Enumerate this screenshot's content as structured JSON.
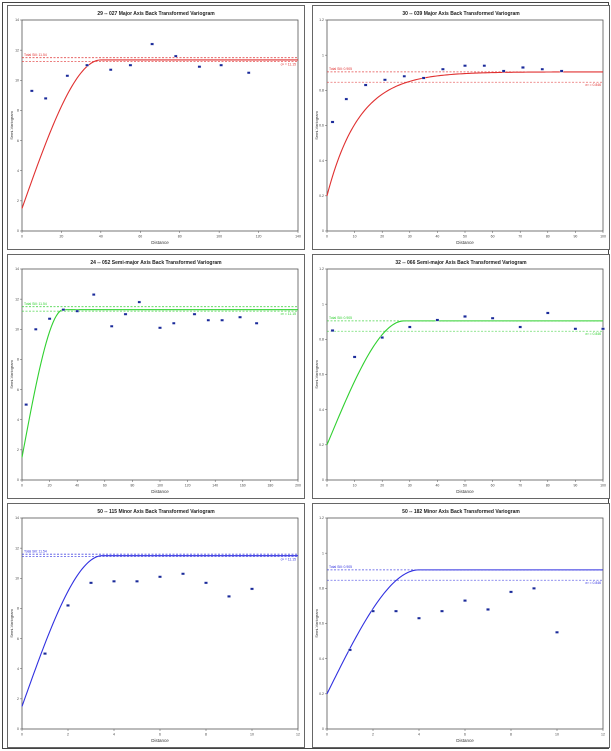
{
  "charts": [
    {
      "title": "29 -- 027 Major Axis Back Transformed Variogram",
      "xlabel": "Distance",
      "ylabel": "Semi-Variogram",
      "color": "#e03030",
      "total_sill_label": "Total Sill: 11.54",
      "right_label": "σ² = 11.15",
      "xlim": [
        0,
        140
      ],
      "ylim": [
        0,
        14
      ],
      "xticks": [
        0,
        20,
        40,
        60,
        80,
        100,
        120,
        140
      ],
      "yticks": [
        0,
        2,
        4,
        6,
        8,
        10,
        12,
        14
      ],
      "model": {
        "nugget": 1.5,
        "sill": 11.35,
        "range": 40,
        "shape": "spherical"
      },
      "sill_lines": [
        11.5,
        11.25
      ],
      "points": [
        [
          5,
          9.3
        ],
        [
          12,
          8.8
        ],
        [
          23,
          10.3
        ],
        [
          33,
          11.0
        ],
        [
          45,
          10.7
        ],
        [
          55,
          11.0
        ],
        [
          66,
          12.4
        ],
        [
          78,
          11.6
        ],
        [
          90,
          10.9
        ],
        [
          101,
          11.0
        ],
        [
          115,
          10.5
        ]
      ]
    },
    {
      "title": "30 -- 039 Major Axis Back Transformed Variogram",
      "xlabel": "Distance",
      "ylabel": "Semi-Variogram",
      "color": "#e03030",
      "total_sill_label": "Total Sill: 0.905",
      "right_label": "σ² = 0.846",
      "xlim": [
        0,
        100
      ],
      "ylim": [
        0,
        1.2
      ],
      "xticks": [
        0,
        10,
        20,
        30,
        40,
        50,
        60,
        70,
        80,
        90,
        100
      ],
      "yticks": [
        0,
        0.2,
        0.4,
        0.6,
        0.8,
        1.0,
        1.2
      ],
      "model": {
        "nugget": 0.2,
        "sill": 0.905,
        "range": 35,
        "shape": "exponential"
      },
      "sill_lines": [
        0.905,
        0.846
      ],
      "points": [
        [
          2,
          0.62
        ],
        [
          7,
          0.75
        ],
        [
          14,
          0.83
        ],
        [
          21,
          0.86
        ],
        [
          28,
          0.88
        ],
        [
          35,
          0.87
        ],
        [
          42,
          0.92
        ],
        [
          50,
          0.94
        ],
        [
          57,
          0.94
        ],
        [
          64,
          0.91
        ],
        [
          71,
          0.93
        ],
        [
          78,
          0.92
        ],
        [
          85,
          0.91
        ]
      ]
    },
    {
      "title": "24 -- 052 Semi-major Axis Back Transformed Variogram",
      "xlabel": "Distance",
      "ylabel": "Semi-Variogram",
      "color": "#30d030",
      "total_sill_label": "Total Sill: 11.54",
      "right_label": "σ² = 11.15",
      "xlim": [
        0,
        200
      ],
      "ylim": [
        0,
        14
      ],
      "xticks": [
        0,
        20,
        40,
        60,
        80,
        100,
        120,
        140,
        160,
        180,
        200
      ],
      "yticks": [
        0,
        2,
        4,
        6,
        8,
        10,
        12,
        14
      ],
      "model": {
        "nugget": 1.5,
        "sill": 11.3,
        "range": 30,
        "shape": "spherical"
      },
      "sill_lines": [
        11.5,
        11.2
      ],
      "points": [
        [
          3,
          5.0
        ],
        [
          10,
          10.0
        ],
        [
          20,
          10.7
        ],
        [
          30,
          11.3
        ],
        [
          40,
          11.2
        ],
        [
          52,
          12.3
        ],
        [
          65,
          10.2
        ],
        [
          75,
          11.0
        ],
        [
          85,
          11.8
        ],
        [
          100,
          10.1
        ],
        [
          110,
          10.4
        ],
        [
          125,
          11.0
        ],
        [
          135,
          10.6
        ],
        [
          145,
          10.6
        ],
        [
          158,
          10.8
        ],
        [
          170,
          10.4
        ]
      ]
    },
    {
      "title": "32 -- 066 Semi-major Axis Back Transformed Variogram",
      "xlabel": "Distance",
      "ylabel": "Semi-Variogram",
      "color": "#30d030",
      "total_sill_label": "Total Sill: 0.905",
      "right_label": "σ² = 0.846",
      "xlim": [
        0,
        100
      ],
      "ylim": [
        0,
        1.2
      ],
      "xticks": [
        0,
        10,
        20,
        30,
        40,
        50,
        60,
        70,
        80,
        90,
        100
      ],
      "yticks": [
        0,
        0.2,
        0.4,
        0.6,
        0.8,
        1.0,
        1.2
      ],
      "model": {
        "nugget": 0.2,
        "sill": 0.905,
        "range": 28,
        "shape": "spherical"
      },
      "sill_lines": [
        0.905,
        0.846
      ],
      "points": [
        [
          2,
          0.85
        ],
        [
          10,
          0.7
        ],
        [
          20,
          0.81
        ],
        [
          30,
          0.87
        ],
        [
          40,
          0.91
        ],
        [
          50,
          0.93
        ],
        [
          60,
          0.92
        ],
        [
          70,
          0.87
        ],
        [
          80,
          0.95
        ],
        [
          90,
          0.86
        ],
        [
          100,
          0.86
        ]
      ]
    },
    {
      "title": "50 -- 115 Minor Axis Back Transformed Variogram",
      "xlabel": "Distance",
      "ylabel": "Semi-Variogram",
      "color": "#3030e0",
      "total_sill_label": "Total Sill: 11.54",
      "right_label": "σ² = 11.15",
      "xlim": [
        0,
        12
      ],
      "ylim": [
        0,
        14
      ],
      "xticks": [
        0,
        2,
        4,
        6,
        8,
        10,
        12
      ],
      "yticks": [
        0,
        2,
        4,
        6,
        8,
        10,
        12,
        14
      ],
      "model": {
        "nugget": 1.5,
        "sill": 11.5,
        "range": 3.5,
        "shape": "spherical"
      },
      "sill_lines": [
        11.6,
        11.45
      ],
      "points": [
        [
          1,
          5.0
        ],
        [
          2,
          8.2
        ],
        [
          3,
          9.7
        ],
        [
          4,
          9.8
        ],
        [
          5,
          9.8
        ],
        [
          6,
          10.1
        ],
        [
          7,
          10.3
        ],
        [
          8,
          9.7
        ],
        [
          9,
          8.8
        ],
        [
          10,
          9.3
        ]
      ]
    },
    {
      "title": "50 -- 182 Minor Axis Back Transformed Variogram",
      "xlabel": "Distance",
      "ylabel": "Semi-Variogram",
      "color": "#3030e0",
      "total_sill_label": "Total Sill: 0.905",
      "right_label": "σ² = 0.846",
      "xlim": [
        0,
        12
      ],
      "ylim": [
        0,
        1.2
      ],
      "xticks": [
        0,
        2,
        4,
        6,
        8,
        10,
        12
      ],
      "yticks": [
        0,
        0.2,
        0.4,
        0.6,
        0.8,
        1.0,
        1.2
      ],
      "model": {
        "nugget": 0.2,
        "sill": 0.905,
        "range": 4.0,
        "shape": "spherical"
      },
      "sill_lines": [
        0.905,
        0.846
      ],
      "points": [
        [
          1,
          0.45
        ],
        [
          2,
          0.67
        ],
        [
          3,
          0.67
        ],
        [
          4,
          0.63
        ],
        [
          5,
          0.67
        ],
        [
          6,
          0.73
        ],
        [
          7,
          0.68
        ],
        [
          8,
          0.78
        ],
        [
          9,
          0.8
        ],
        [
          10,
          0.55
        ]
      ]
    }
  ]
}
